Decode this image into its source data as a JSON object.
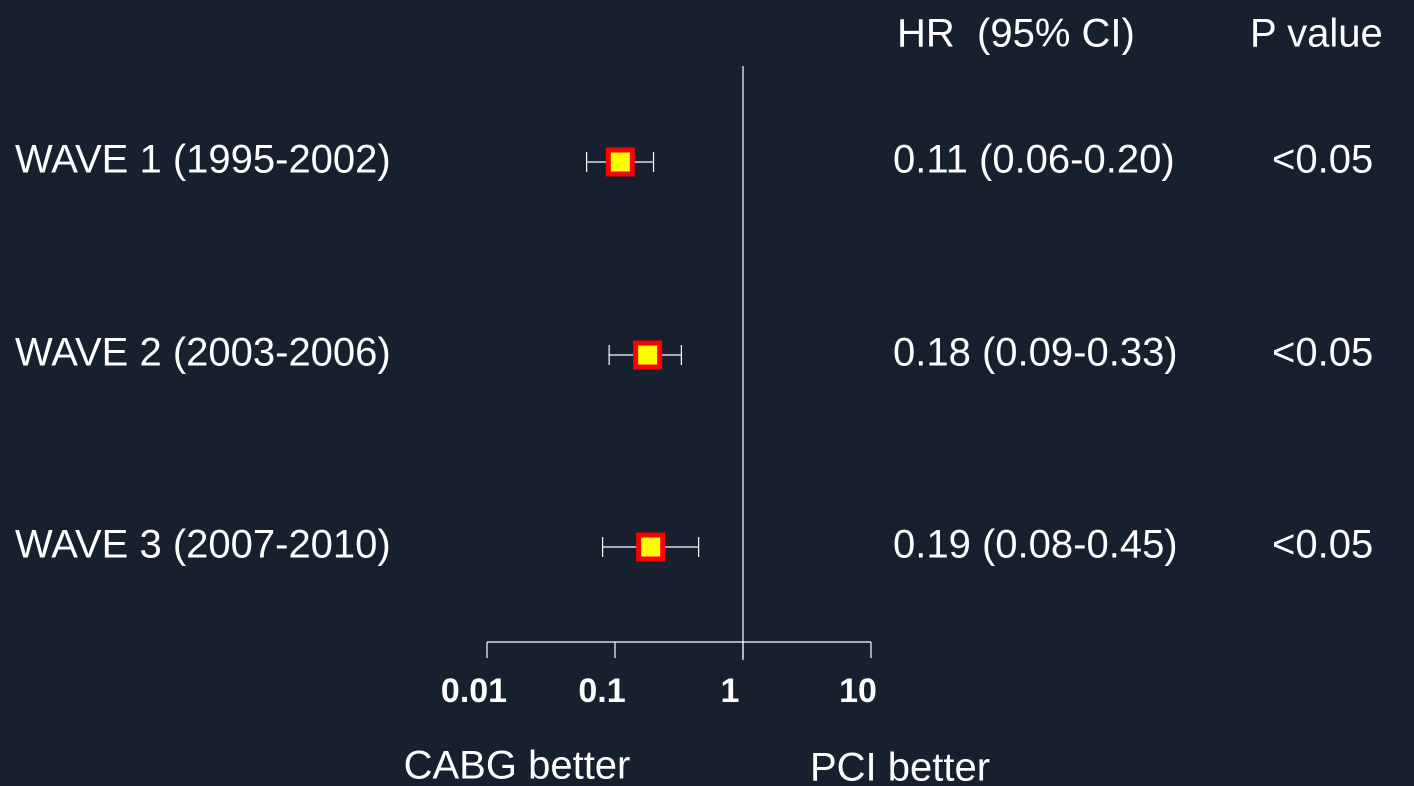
{
  "chart_data": {
    "type": "forest",
    "hr_header": "HR  (95% CI)",
    "p_header": "P value",
    "categories": [
      "WAVE 1 (1995-2002)",
      "WAVE 2 (2003-2006)",
      "WAVE 3 (2007-2010)"
    ],
    "values": [
      0.11,
      0.18,
      0.19
    ],
    "ci_low": [
      0.06,
      0.09,
      0.08
    ],
    "ci_high": [
      0.2,
      0.33,
      0.45
    ],
    "value_labels": [
      "0.11 (0.06-0.20)",
      "0.18 (0.09-0.33)",
      "0.19 (0.08-0.45)"
    ],
    "p_values": [
      "<0.05",
      "<0.05",
      "<0.05"
    ],
    "xlim": [
      0.01,
      10
    ],
    "xticks": [
      0.01,
      0.1,
      1,
      10
    ],
    "log_scale": true,
    "reference": 1,
    "marker_color": "#ffff00",
    "marker_edge_color": "#ff0000",
    "annotations": [
      "CABG better",
      "PCI better"
    ]
  }
}
